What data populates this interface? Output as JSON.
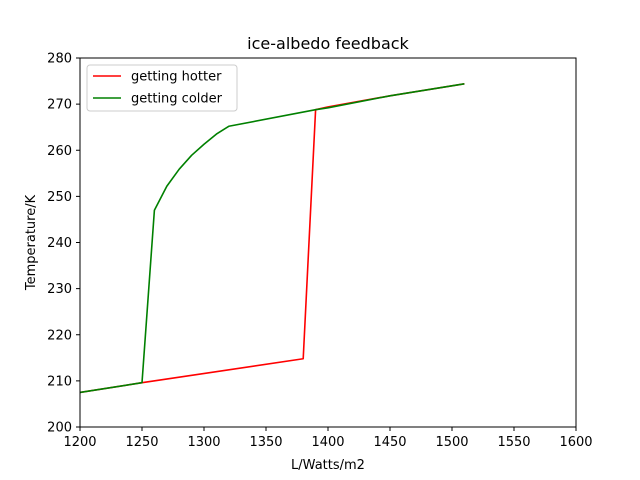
{
  "chart_data": {
    "type": "line",
    "title": "ice-albedo feedback",
    "xlabel": "L/Watts/m2",
    "ylabel": "Temperature/K",
    "xlim": [
      1200,
      1600
    ],
    "ylim": [
      200,
      280
    ],
    "xticks": [
      1200,
      1250,
      1300,
      1350,
      1400,
      1450,
      1500,
      1550,
      1600
    ],
    "yticks": [
      200,
      210,
      220,
      230,
      240,
      250,
      260,
      270,
      280
    ],
    "grid": false,
    "legend_position": "top-left",
    "series": [
      {
        "name": "getting hotter",
        "color": "#ff0000",
        "x": [
          1200,
          1250,
          1380,
          1390,
          1400,
          1450,
          1510
        ],
        "y": [
          207.5,
          209.6,
          214.8,
          268.8,
          269.4,
          271.8,
          274.4
        ]
      },
      {
        "name": "getting colder",
        "color": "#008000",
        "x": [
          1510,
          1450,
          1400,
          1390,
          1320,
          1310,
          1300,
          1290,
          1280,
          1270,
          1260,
          1250,
          1200
        ],
        "y": [
          274.4,
          271.8,
          269.2,
          268.8,
          265.2,
          263.5,
          261.3,
          258.9,
          255.9,
          252.2,
          247.0,
          209.6,
          207.5
        ]
      }
    ]
  }
}
